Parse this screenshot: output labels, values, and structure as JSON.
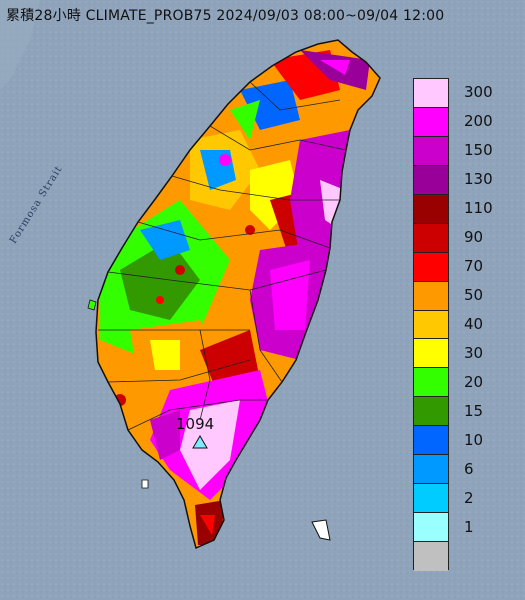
{
  "title": "累積28小時 CLIMATE_PROB75 2024/09/03 08:00~09/04 12:00",
  "strait_label": "Formosa Strait",
  "max_marker": {
    "value": "1094",
    "icon": "triangle-marker-icon"
  },
  "legend": {
    "entries": [
      {
        "label": "300",
        "color": "#ffc8ff"
      },
      {
        "label": "200",
        "color": "#ff00ff"
      },
      {
        "label": "150",
        "color": "#cc00cc"
      },
      {
        "label": "130",
        "color": "#990099"
      },
      {
        "label": "110",
        "color": "#990000"
      },
      {
        "label": "90",
        "color": "#cc0000"
      },
      {
        "label": "70",
        "color": "#ff0000"
      },
      {
        "label": "50",
        "color": "#ff9900"
      },
      {
        "label": "40",
        "color": "#ffc800"
      },
      {
        "label": "30",
        "color": "#ffff00"
      },
      {
        "label": "20",
        "color": "#33ff00"
      },
      {
        "label": "15",
        "color": "#339900"
      },
      {
        "label": "10",
        "color": "#0066ff"
      },
      {
        "label": "6",
        "color": "#0099ff"
      },
      {
        "label": "2",
        "color": "#00ccff"
      },
      {
        "label": "1",
        "color": "#99ffff"
      },
      {
        "label": "",
        "color": "#c0c0c0"
      }
    ]
  },
  "colors": {
    "sea": "#8fa3ba",
    "land_outline": "#111111"
  }
}
